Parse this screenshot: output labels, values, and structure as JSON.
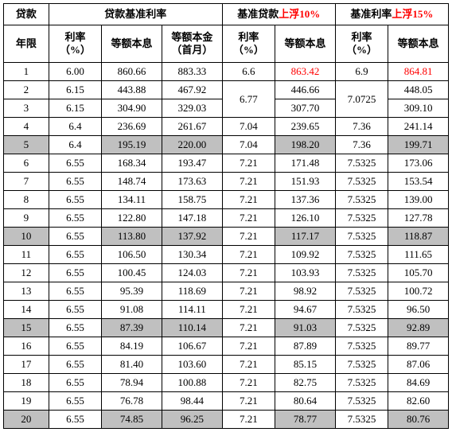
{
  "headers": {
    "top": {
      "loan": "贷款",
      "base": "贷款基准利率",
      "up10_a": "基准贷款",
      "up10_b": "上浮10%",
      "up15_a": "基准利率",
      "up15_b": "上浮15%"
    },
    "sub": {
      "year": "年限",
      "rate": "利率\n（%）",
      "eqpi": "等额本息",
      "eqpf": "等额本金\n（首月）",
      "rate2": "利率\n（%）",
      "eqpi2": "等额本息",
      "rate3": "利率\n（%）",
      "eqpi3": "等额本息"
    }
  },
  "colors": {
    "highlight_bg": "#c0c0c0",
    "red_text": "#ff0000"
  },
  "merged": {
    "r1_rate10": "6.6",
    "r23_rate10": "6.77",
    "r1_rate15": "6.9",
    "r23_rate15": "7.0725"
  },
  "rows": [
    {
      "y": "1",
      "r": "6.00",
      "a": "860.66",
      "b": "883.33",
      "r10": null,
      "a10": "863.42",
      "r15": null,
      "a15": "864.81",
      "hl": false,
      "red10": true,
      "red15": true
    },
    {
      "y": "2",
      "r": "6.15",
      "a": "443.88",
      "b": "467.92",
      "r10": null,
      "a10": "446.66",
      "r15": null,
      "a15": "448.05",
      "hl": false
    },
    {
      "y": "3",
      "r": "6.15",
      "a": "304.90",
      "b": "329.03",
      "r10": null,
      "a10": "307.70",
      "r15": null,
      "a15": "309.10",
      "hl": false
    },
    {
      "y": "4",
      "r": "6.4",
      "a": "236.69",
      "b": "261.67",
      "r10": "7.04",
      "a10": "239.65",
      "r15": "7.36",
      "a15": "241.14",
      "hl": false
    },
    {
      "y": "5",
      "r": "6.4",
      "a": "195.19",
      "b": "220.00",
      "r10": "7.04",
      "a10": "198.20",
      "r15": "7.36",
      "a15": "199.71",
      "hl": true
    },
    {
      "y": "6",
      "r": "6.55",
      "a": "168.34",
      "b": "193.47",
      "r10": "7.21",
      "a10": "171.48",
      "r15": "7.5325",
      "a15": "173.06",
      "hl": false
    },
    {
      "y": "7",
      "r": "6.55",
      "a": "148.74",
      "b": "173.63",
      "r10": "7.21",
      "a10": "151.93",
      "r15": "7.5325",
      "a15": "153.54",
      "hl": false
    },
    {
      "y": "8",
      "r": "6.55",
      "a": "134.11",
      "b": "158.75",
      "r10": "7.21",
      "a10": "137.36",
      "r15": "7.5325",
      "a15": "139.00",
      "hl": false
    },
    {
      "y": "9",
      "r": "6.55",
      "a": "122.80",
      "b": "147.18",
      "r10": "7.21",
      "a10": "126.10",
      "r15": "7.5325",
      "a15": "127.78",
      "hl": false
    },
    {
      "y": "10",
      "r": "6.55",
      "a": "113.80",
      "b": "137.92",
      "r10": "7.21",
      "a10": "117.17",
      "r15": "7.5325",
      "a15": "118.87",
      "hl": true
    },
    {
      "y": "11",
      "r": "6.55",
      "a": "106.50",
      "b": "130.34",
      "r10": "7.21",
      "a10": "109.92",
      "r15": "7.5325",
      "a15": "111.65",
      "hl": false
    },
    {
      "y": "12",
      "r": "6.55",
      "a": "100.45",
      "b": "124.03",
      "r10": "7.21",
      "a10": "103.93",
      "r15": "7.5325",
      "a15": "105.70",
      "hl": false
    },
    {
      "y": "13",
      "r": "6.55",
      "a": "95.39",
      "b": "118.69",
      "r10": "7.21",
      "a10": "98.92",
      "r15": "7.5325",
      "a15": "100.72",
      "hl": false
    },
    {
      "y": "14",
      "r": "6.55",
      "a": "91.08",
      "b": "114.11",
      "r10": "7.21",
      "a10": "94.67",
      "r15": "7.5325",
      "a15": "96.50",
      "hl": false
    },
    {
      "y": "15",
      "r": "6.55",
      "a": "87.39",
      "b": "110.14",
      "r10": "7.21",
      "a10": "91.03",
      "r15": "7.5325",
      "a15": "92.89",
      "hl": true
    },
    {
      "y": "16",
      "r": "6.55",
      "a": "84.19",
      "b": "106.67",
      "r10": "7.21",
      "a10": "87.89",
      "r15": "7.5325",
      "a15": "89.77",
      "hl": false
    },
    {
      "y": "17",
      "r": "6.55",
      "a": "81.40",
      "b": "103.60",
      "r10": "7.21",
      "a10": "85.15",
      "r15": "7.5325",
      "a15": "87.06",
      "hl": false
    },
    {
      "y": "18",
      "r": "6.55",
      "a": "78.94",
      "b": "100.88",
      "r10": "7.21",
      "a10": "82.75",
      "r15": "7.5325",
      "a15": "84.69",
      "hl": false
    },
    {
      "y": "19",
      "r": "6.55",
      "a": "76.78",
      "b": "98.44",
      "r10": "7.21",
      "a10": "80.64",
      "r15": "7.5325",
      "a15": "82.60",
      "hl": false
    },
    {
      "y": "20",
      "r": "6.55",
      "a": "74.85",
      "b": "96.25",
      "r10": "7.21",
      "a10": "78.77",
      "r15": "7.5325",
      "a15": "80.76",
      "hl": true
    }
  ]
}
